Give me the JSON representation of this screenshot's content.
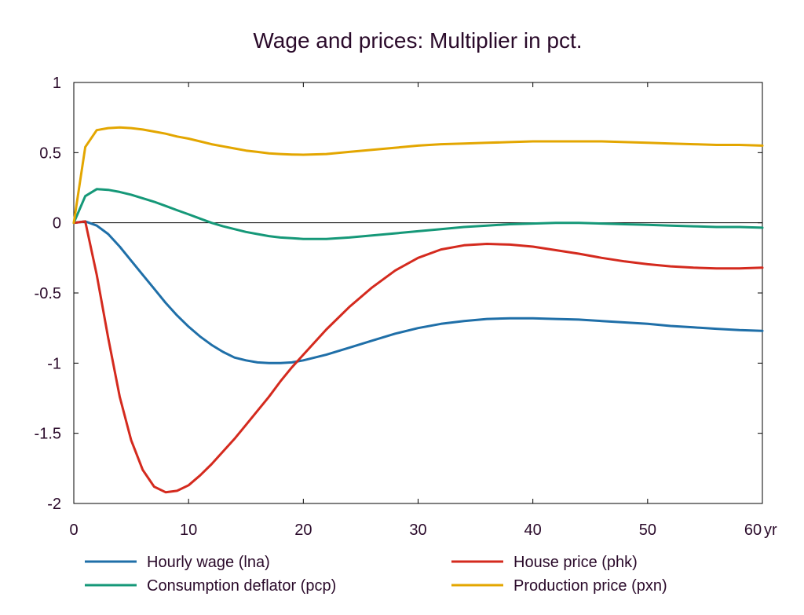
{
  "chart_data": {
    "type": "line",
    "title": "Wage and prices: Multiplier in pct.",
    "xlabel": "",
    "ylabel": "",
    "x_unit": "yr",
    "xlim": [
      0,
      60
    ],
    "ylim": [
      -2,
      1
    ],
    "x_ticks": [
      "0",
      "10",
      "20",
      "30",
      "40",
      "50",
      "60"
    ],
    "y_ticks": [
      "1",
      "0.5",
      "0",
      "-0.5",
      "-1",
      "-1.5",
      "-2"
    ],
    "grid": false,
    "zero_line": true,
    "legend_position": "bottom",
    "x": [
      0,
      1,
      2,
      3,
      4,
      5,
      6,
      7,
      8,
      9,
      10,
      11,
      12,
      13,
      14,
      15,
      16,
      17,
      18,
      19,
      20,
      22,
      24,
      26,
      28,
      30,
      32,
      34,
      36,
      38,
      40,
      42,
      44,
      46,
      48,
      50,
      52,
      54,
      56,
      58,
      60
    ],
    "series": [
      {
        "name": "Hourly wage (lna)",
        "color": "#1f6fa8",
        "values": [
          0,
          0.01,
          -0.02,
          -0.08,
          -0.17,
          -0.27,
          -0.37,
          -0.47,
          -0.57,
          -0.66,
          -0.74,
          -0.81,
          -0.87,
          -0.92,
          -0.96,
          -0.98,
          -0.995,
          -1.0,
          -1.0,
          -0.995,
          -0.98,
          -0.94,
          -0.89,
          -0.84,
          -0.79,
          -0.75,
          -0.72,
          -0.7,
          -0.685,
          -0.68,
          -0.68,
          -0.685,
          -0.69,
          -0.7,
          -0.71,
          -0.72,
          -0.735,
          -0.745,
          -0.755,
          -0.765,
          -0.77
        ]
      },
      {
        "name": "House price (phk)",
        "color": "#d42a1e",
        "values": [
          0,
          0.01,
          -0.37,
          -0.82,
          -1.24,
          -1.55,
          -1.76,
          -1.88,
          -1.92,
          -1.91,
          -1.87,
          -1.8,
          -1.72,
          -1.63,
          -1.54,
          -1.44,
          -1.34,
          -1.24,
          -1.13,
          -1.03,
          -0.94,
          -0.76,
          -0.6,
          -0.46,
          -0.34,
          -0.25,
          -0.19,
          -0.16,
          -0.15,
          -0.155,
          -0.17,
          -0.195,
          -0.22,
          -0.25,
          -0.275,
          -0.295,
          -0.31,
          -0.32,
          -0.325,
          -0.325,
          -0.32
        ]
      },
      {
        "name": "Consumption deflator (pcp)",
        "color": "#159878",
        "values": [
          0,
          0.19,
          0.24,
          0.235,
          0.22,
          0.2,
          0.175,
          0.15,
          0.12,
          0.09,
          0.06,
          0.03,
          0.0,
          -0.025,
          -0.045,
          -0.065,
          -0.08,
          -0.095,
          -0.105,
          -0.11,
          -0.115,
          -0.115,
          -0.105,
          -0.09,
          -0.075,
          -0.06,
          -0.045,
          -0.03,
          -0.02,
          -0.01,
          -0.005,
          0.0,
          0.0,
          -0.005,
          -0.01,
          -0.015,
          -0.02,
          -0.025,
          -0.03,
          -0.03,
          -0.035
        ]
      },
      {
        "name": "Production price (pxn)",
        "color": "#e3a600",
        "values": [
          0,
          0.54,
          0.66,
          0.675,
          0.68,
          0.675,
          0.665,
          0.65,
          0.635,
          0.615,
          0.6,
          0.58,
          0.56,
          0.545,
          0.53,
          0.515,
          0.505,
          0.495,
          0.49,
          0.487,
          0.485,
          0.49,
          0.505,
          0.52,
          0.535,
          0.55,
          0.56,
          0.565,
          0.57,
          0.575,
          0.58,
          0.58,
          0.58,
          0.58,
          0.575,
          0.57,
          0.565,
          0.56,
          0.555,
          0.555,
          0.55
        ]
      }
    ]
  }
}
